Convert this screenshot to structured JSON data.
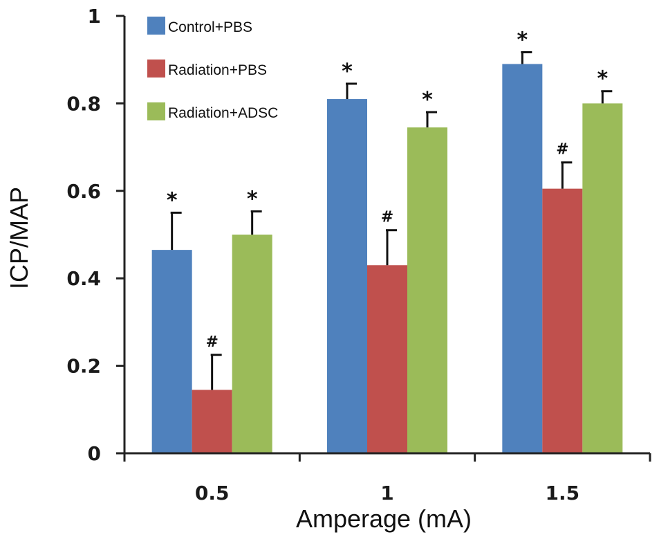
{
  "chart_data": {
    "type": "bar",
    "title": "",
    "xlabel": "Amperage (mA)",
    "ylabel": "ICP/MAP",
    "ylim": [
      0,
      1
    ],
    "yticks": [
      "0",
      "0.2",
      "0.4",
      "0.6",
      "0.8",
      "1"
    ],
    "categories": [
      "0.5",
      "1",
      "1.5"
    ],
    "legend_position": "top-left",
    "grid": false,
    "series": [
      {
        "name": "Control+PBS",
        "color": "#4f81bd",
        "values": [
          0.465,
          0.81,
          0.89
        ],
        "errors": [
          0.085,
          0.035,
          0.027
        ],
        "markers": [
          "*",
          "*",
          "*"
        ]
      },
      {
        "name": "Radiation+PBS",
        "color": "#c0504d",
        "values": [
          0.145,
          0.43,
          0.605
        ],
        "errors": [
          0.08,
          0.08,
          0.06
        ],
        "markers": [
          "#",
          "#",
          "#"
        ]
      },
      {
        "name": "Radiation+ADSC",
        "color": "#9bbb59",
        "values": [
          0.5,
          0.745,
          0.8
        ],
        "errors": [
          0.053,
          0.035,
          0.028
        ],
        "markers": [
          "*",
          "*",
          "*"
        ]
      }
    ]
  }
}
